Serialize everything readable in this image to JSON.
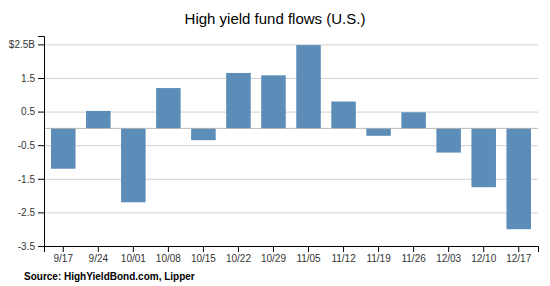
{
  "chart_data": {
    "type": "bar",
    "title": "High yield fund flows (U.S.)",
    "categories": [
      "9/17",
      "9/24",
      "10/01",
      "10/08",
      "10/15",
      "10/22",
      "10/29",
      "11/05",
      "11/12",
      "11/19",
      "11/26",
      "12/03",
      "12/10",
      "12/17"
    ],
    "values": [
      -1.2,
      0.52,
      -2.2,
      1.2,
      -0.35,
      1.65,
      1.58,
      2.48,
      0.8,
      -0.22,
      0.48,
      -0.72,
      -1.75,
      -3.0
    ],
    "color": "#5b8db8",
    "ylim": [
      -3.5,
      2.75
    ],
    "yticks": [
      -3.5,
      -2.5,
      -1.5,
      -0.5,
      0.5,
      1.5,
      {
        "value": 2.5,
        "label": "$2.5B"
      }
    ],
    "grid": true,
    "annotations": [
      "Source: HighYieldBond.com, Lipper"
    ]
  }
}
